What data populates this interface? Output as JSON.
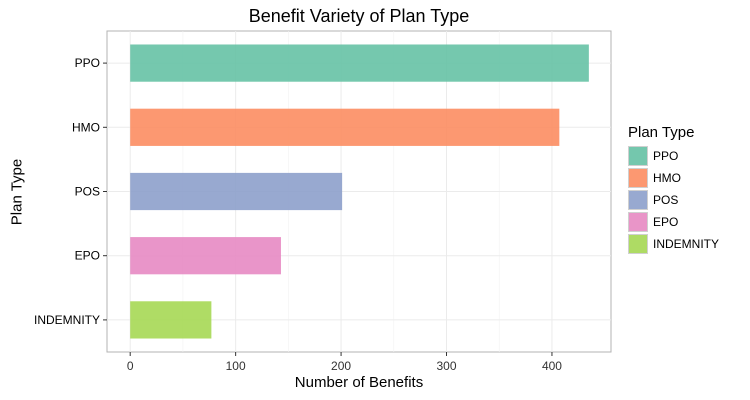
{
  "chart_data": {
    "type": "bar",
    "orientation": "horizontal",
    "title": "Benefit Variety of Plan Type",
    "xlabel": "Number of Benefits",
    "ylabel": "Plan Type",
    "categories": [
      "PPO",
      "HMO",
      "POS",
      "EPO",
      "INDEMNITY"
    ],
    "values": [
      435,
      407,
      201,
      143,
      77
    ],
    "colors": [
      "#66C2A5",
      "#FC8D62",
      "#8DA0CB",
      "#E78AC3",
      "#A6D854"
    ],
    "xlim": [
      -22,
      456
    ],
    "xticks": [
      0,
      100,
      200,
      300,
      400
    ],
    "grid": true,
    "legend": {
      "title": "Plan Type",
      "placement": "right",
      "entries": [
        "PPO",
        "HMO",
        "POS",
        "EPO",
        "INDEMNITY"
      ]
    }
  }
}
